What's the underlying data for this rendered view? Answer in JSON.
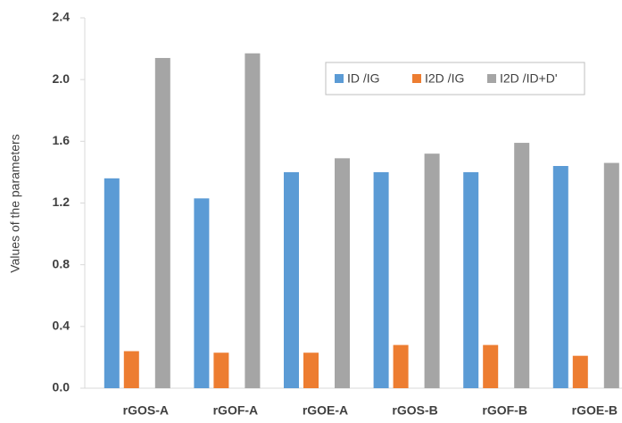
{
  "chart_data": {
    "type": "bar",
    "y_label": "Values of the parameters",
    "categories": [
      "rGOS-A",
      "rGOF-A",
      "rGOE-A",
      "rGOS-B",
      "rGOF-B",
      "rGOE-B"
    ],
    "series": [
      {
        "name": "ID /IG",
        "color": "#5b9bd5",
        "values": [
          1.36,
          1.23,
          1.4,
          1.4,
          1.4,
          1.44
        ]
      },
      {
        "name": "I2D /IG",
        "color": "#ed7d31",
        "values": [
          0.24,
          0.23,
          0.23,
          0.28,
          0.28,
          0.21
        ]
      },
      {
        "name": "I2D /ID+D'",
        "color": "#a5a5a5",
        "values": [
          2.14,
          2.17,
          1.49,
          1.52,
          1.59,
          1.46
        ]
      }
    ],
    "ylim": [
      0,
      2.4
    ],
    "yticks": [
      {
        "value": 0,
        "label": "0.0"
      },
      0.4,
      0.8,
      1.2,
      1.6,
      {
        "value": 2,
        "label": "2.0"
      },
      2.4
    ],
    "grid": false,
    "legend": "top-right"
  }
}
